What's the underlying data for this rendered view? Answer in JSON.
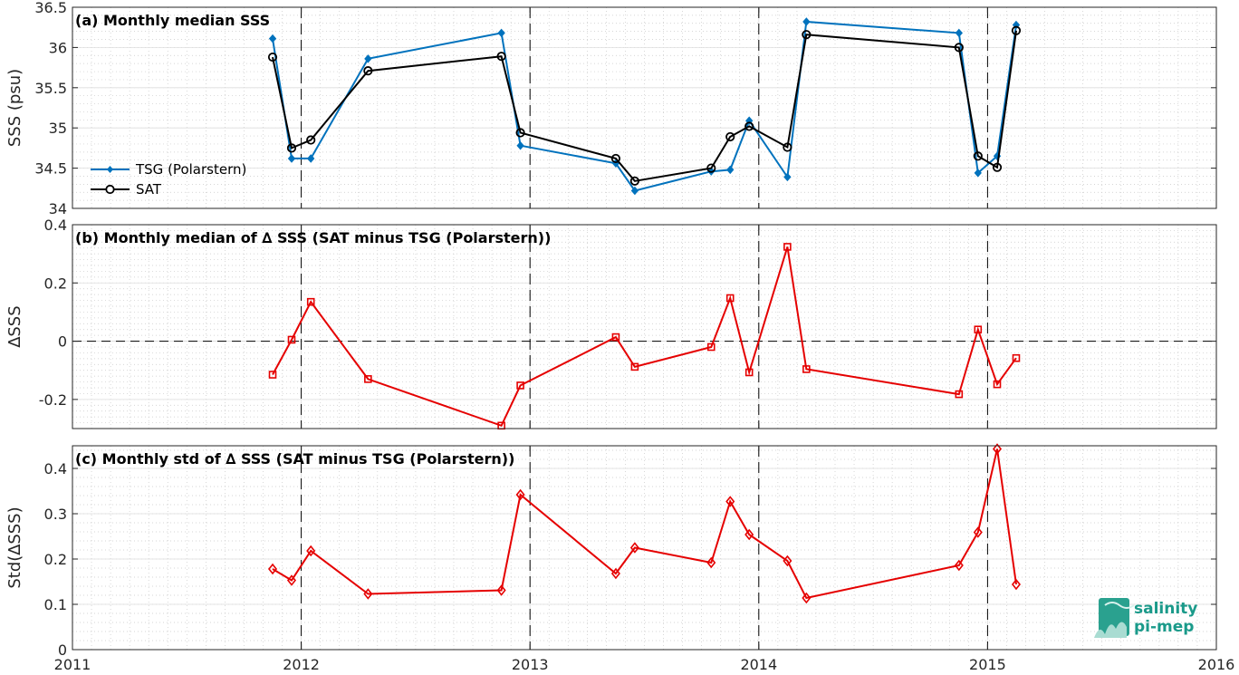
{
  "chart_data": [
    {
      "type": "line",
      "title": "(a) Monthly median SSS",
      "ylabel": "SSS (psu)",
      "xlabel": "",
      "xlim": [
        2011,
        2016
      ],
      "ylim": [
        34,
        36.5
      ],
      "yticks": [
        "34",
        "34.5",
        "35",
        "35.5",
        "36",
        "36.5"
      ],
      "grid": true,
      "legend": "left",
      "series": [
        {
          "name": "TSG (Polarstern)",
          "color": "#0072bd",
          "marker": "diamond-filled",
          "x": [
            2011.875,
            2011.958,
            2012.042,
            2012.292,
            2012.875,
            2012.958,
            2013.375,
            2013.458,
            2013.792,
            2013.875,
            2013.958,
            2014.125,
            2014.208,
            2014.875,
            2014.958,
            2015.042,
            2015.125
          ],
          "y": [
            36.11,
            34.62,
            34.62,
            35.86,
            36.18,
            34.78,
            34.56,
            34.22,
            34.46,
            34.48,
            35.09,
            34.39,
            36.32,
            36.18,
            34.44,
            34.65,
            36.28
          ]
        },
        {
          "name": "SAT",
          "color": "#000000",
          "marker": "circle-open",
          "x": [
            2011.875,
            2011.958,
            2012.042,
            2012.292,
            2012.875,
            2012.958,
            2013.375,
            2013.458,
            2013.792,
            2013.875,
            2013.958,
            2014.125,
            2014.208,
            2014.875,
            2014.958,
            2015.042,
            2015.125
          ],
          "y": [
            35.88,
            34.75,
            34.85,
            35.71,
            35.89,
            34.94,
            34.62,
            34.34,
            34.5,
            34.89,
            35.02,
            34.76,
            36.16,
            36.0,
            34.65,
            34.51,
            36.21
          ]
        }
      ]
    },
    {
      "type": "line",
      "title": "(b) Monthly median of ∆ SSS (SAT minus TSG (Polarstern))",
      "ylabel": "∆SSS",
      "xlabel": "",
      "xlim": [
        2011,
        2016
      ],
      "ylim": [
        -0.3,
        0.4
      ],
      "yticks": [
        "-0.2",
        "0",
        "0.2",
        "0.4"
      ],
      "zero_line": true,
      "grid": true,
      "series": [
        {
          "color": "#e50000",
          "marker": "square-open",
          "x": [
            2011.875,
            2011.958,
            2012.042,
            2012.292,
            2012.875,
            2012.958,
            2013.375,
            2013.458,
            2013.792,
            2013.875,
            2013.958,
            2014.125,
            2014.208,
            2014.875,
            2014.958,
            2015.042,
            2015.125
          ],
          "y": [
            -0.115,
            0.005,
            0.135,
            -0.13,
            -0.29,
            -0.152,
            0.014,
            -0.088,
            -0.02,
            0.148,
            -0.107,
            0.324,
            -0.096,
            -0.182,
            0.04,
            -0.148,
            -0.058
          ]
        }
      ]
    },
    {
      "type": "line",
      "title": "(c) Monthly std of ∆ SSS (SAT minus TSG (Polarstern))",
      "ylabel": "Std(∆SSS)",
      "xlabel": "",
      "xlim": [
        2011,
        2016
      ],
      "ylim": [
        0,
        0.45
      ],
      "yticks": [
        "0",
        "0.1",
        "0.2",
        "0.3",
        "0.4"
      ],
      "xticks": [
        "2011",
        "2012",
        "2013",
        "2014",
        "2015",
        "2016"
      ],
      "grid": true,
      "series": [
        {
          "color": "#e50000",
          "marker": "diamond-open",
          "x": [
            2011.875,
            2011.958,
            2012.042,
            2012.292,
            2012.875,
            2012.958,
            2013.375,
            2013.458,
            2013.792,
            2013.875,
            2013.958,
            2014.125,
            2014.208,
            2014.875,
            2014.958,
            2015.042,
            2015.125
          ],
          "y": [
            0.178,
            0.153,
            0.218,
            0.123,
            0.131,
            0.342,
            0.168,
            0.225,
            0.192,
            0.327,
            0.254,
            0.196,
            0.114,
            0.186,
            0.259,
            0.443,
            0.144
          ]
        }
      ]
    }
  ],
  "logo": {
    "line1": "salinity",
    "line2": "pi-mep"
  },
  "year_lines": [
    2012,
    2013,
    2014,
    2015
  ]
}
